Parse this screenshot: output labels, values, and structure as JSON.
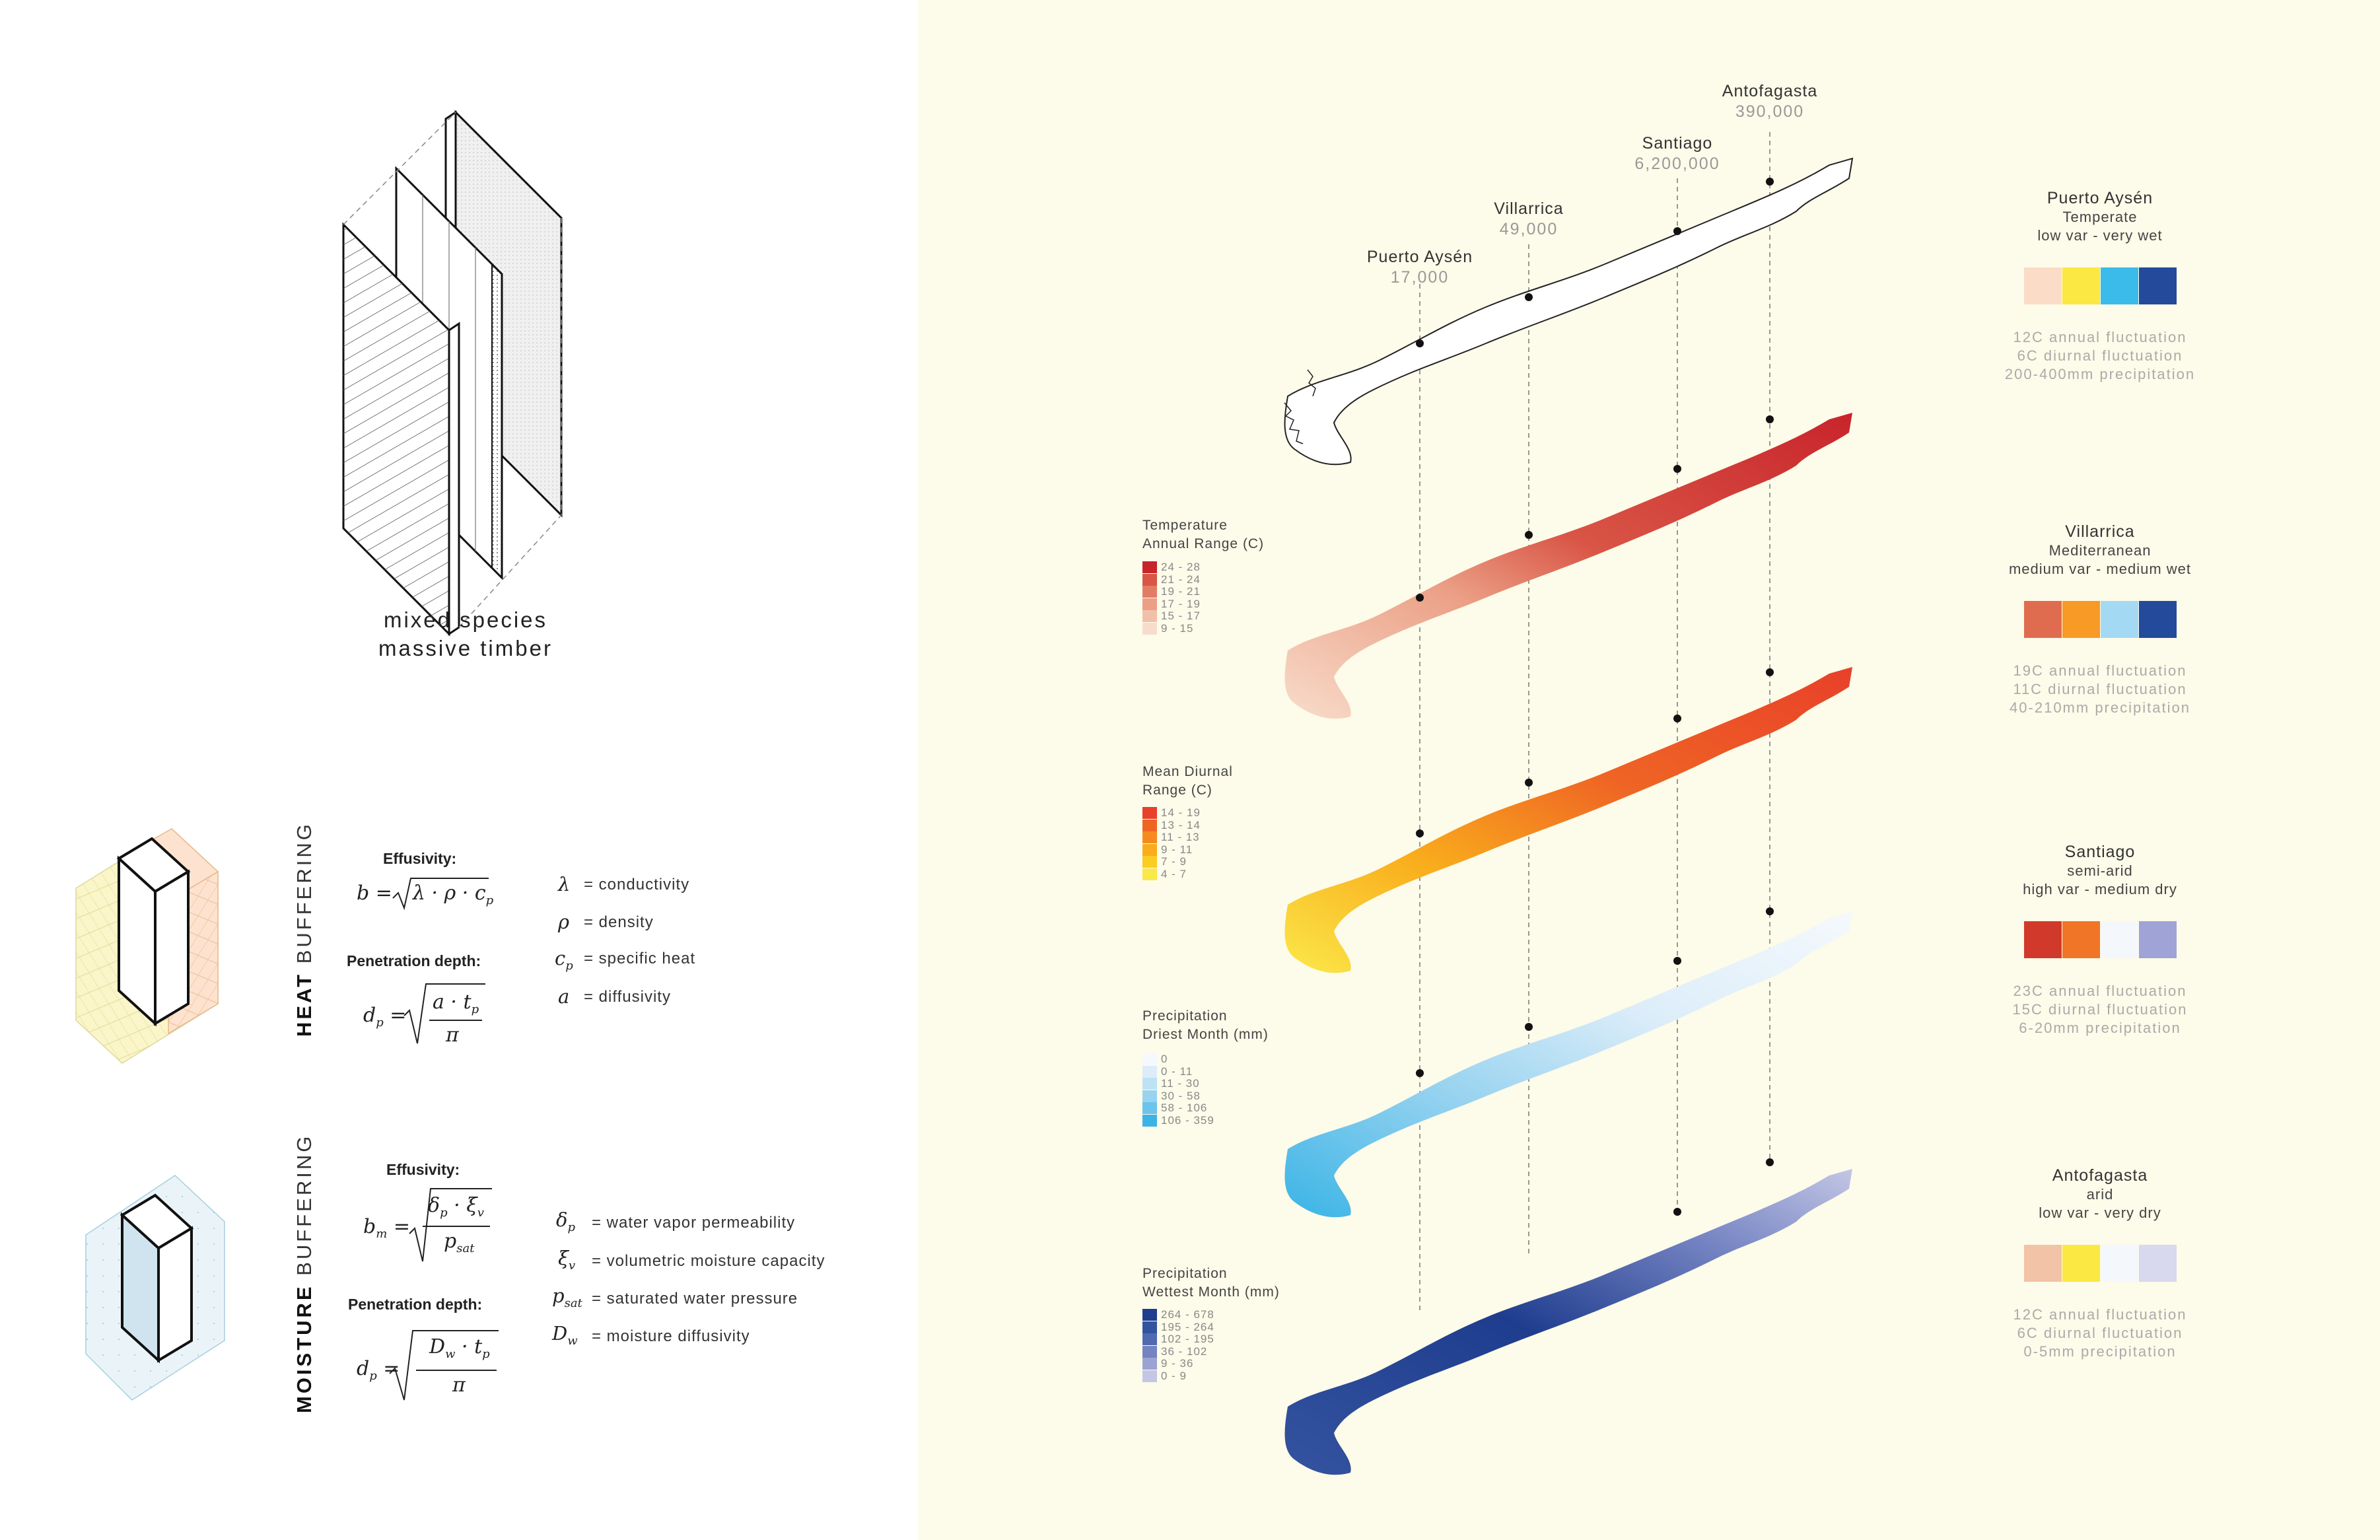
{
  "panel": {
    "title_line1": "mixed species",
    "title_line2": "massive timber"
  },
  "heat": {
    "label_bold": "HEAT",
    "label_light": " BUFFERING",
    "effusivity_head": "Effusivity:",
    "penetration_head": "Penetration depth:",
    "symbols": [
      {
        "sym": "λ",
        "desc": "= conductivity"
      },
      {
        "sym": "ρ",
        "desc": "= density"
      },
      {
        "sym": "cp",
        "desc": "= specific heat"
      },
      {
        "sym": "a",
        "desc": "= diffusivity"
      }
    ]
  },
  "moisture": {
    "label_bold": "MOISTURE",
    "label_light": " BUFFERING",
    "effusivity_head": "Effusivity:",
    "penetration_head": "Penetration depth:",
    "symbols": [
      {
        "sym": "δp",
        "desc": "= water vapor permeability"
      },
      {
        "sym": "ξv",
        "desc": "= volumetric moisture capacity"
      },
      {
        "sym": "psat",
        "desc": "= saturated water pressure"
      },
      {
        "sym": "Dw",
        "desc": "= moisture diffusivity"
      }
    ]
  },
  "cities": [
    {
      "name": "Puerto Aysén",
      "pop": "17,000"
    },
    {
      "name": "Villarrica",
      "pop": "49,000"
    },
    {
      "name": "Santiago",
      "pop": "6,200,000"
    },
    {
      "name": "Antofagasta",
      "pop": "390,000"
    }
  ],
  "maps": [
    {
      "title1": "Temperature",
      "title2": "Annual Range (C)",
      "legend": [
        {
          "label": "24 - 28",
          "color": "#c8242b"
        },
        {
          "label": "21 - 24",
          "color": "#d95546"
        },
        {
          "label": "19 - 21",
          "color": "#e37c66"
        },
        {
          "label": "17 - 19",
          "color": "#eba086"
        },
        {
          "label": "15 - 17",
          "color": "#f2c0a8"
        },
        {
          "label": "9 - 15",
          "color": "#f8dccb"
        }
      ]
    },
    {
      "title1": "Mean Diurnal",
      "title2": "Range (C)",
      "legend": [
        {
          "label": "14 - 19",
          "color": "#e8402a"
        },
        {
          "label": "13 - 14",
          "color": "#ef6524"
        },
        {
          "label": "11 - 13",
          "color": "#f58b1f"
        },
        {
          "label": "9 - 11",
          "color": "#f9ad1c"
        },
        {
          "label": "7 - 9",
          "color": "#fbcc22"
        },
        {
          "label": "4 - 7",
          "color": "#fbe84a"
        }
      ]
    },
    {
      "title1": "Precipitation",
      "title2": "Driest Month (mm)",
      "legend": [
        {
          "label": "0",
          "color": "#f5f9fd"
        },
        {
          "label": "0 - 11",
          "color": "#dcedf9"
        },
        {
          "label": "11 - 30",
          "color": "#bde2f5"
        },
        {
          "label": "30 - 58",
          "color": "#98d3f0"
        },
        {
          "label": "58 - 106",
          "color": "#6cc4ec"
        },
        {
          "label": "106 - 359",
          "color": "#3ab4e6"
        }
      ]
    },
    {
      "title1": "Precipitation",
      "title2": "Wettest Month (mm)",
      "legend": [
        {
          "label": "264 - 678",
          "color": "#1f3d8e"
        },
        {
          "label": "195 - 264",
          "color": "#34539f"
        },
        {
          "label": "102 - 195",
          "color": "#5069b0"
        },
        {
          "label": "36 - 102",
          "color": "#7483c2"
        },
        {
          "label": "9 - 36",
          "color": "#9ca3d3"
        },
        {
          "label": "0 - 9",
          "color": "#c3c6e5"
        }
      ]
    }
  ],
  "climates": [
    {
      "city": "Puerto Aysén",
      "type": "Temperate",
      "profile": "low var - very wet",
      "swatches": [
        "#fbdcc6",
        "#fbe842",
        "#3abbe9",
        "#244a9c"
      ],
      "annual": "12C annual fluctuation",
      "diurnal": "6C diurnal fluctuation",
      "precip": "200-400mm precipitation"
    },
    {
      "city": "Villarrica",
      "type": "Mediterranean",
      "profile": "medium var - medium wet",
      "swatches": [
        "#e06c50",
        "#f79a26",
        "#a4d9f4",
        "#244a9c"
      ],
      "annual": "19C annual fluctuation",
      "diurnal": "11C diurnal fluctuation",
      "precip": "40-210mm precipitation"
    },
    {
      "city": "Santiago",
      "type": "semi-arid",
      "profile": "high var - medium dry",
      "swatches": [
        "#d13a2a",
        "#f07526",
        "#f4f8fc",
        "#9fa3d6"
      ],
      "annual": "23C annual fluctuation",
      "diurnal": "15C diurnal fluctuation",
      "precip": "6-20mm precipitation"
    },
    {
      "city": "Antofagasta",
      "type": "arid",
      "profile": "low var - very dry",
      "swatches": [
        "#f2c3a6",
        "#fbe842",
        "#f4f8fc",
        "#d8d8ee"
      ],
      "annual": "12C annual fluctuation",
      "diurnal": "6C diurnal fluctuation",
      "precip": "0-5mm precipitation"
    }
  ]
}
